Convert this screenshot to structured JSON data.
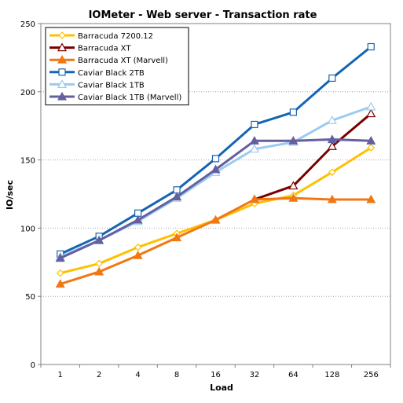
{
  "chart_data": {
    "type": "line",
    "title": "IOMeter - Web server - Transaction rate",
    "xlabel": "Load",
    "ylabel": "IO/sec",
    "categories": [
      "1",
      "2",
      "4",
      "8",
      "16",
      "32",
      "64",
      "128",
      "256"
    ],
    "ylim": [
      0,
      250
    ],
    "yticks": [
      0,
      50,
      100,
      150,
      200,
      250
    ],
    "grid": true,
    "legend_position": "top-left",
    "series": [
      {
        "name": "Barracuda 7200.12",
        "color": "#ffc000",
        "marker": "diamond-open",
        "values": [
          67,
          74,
          86,
          96,
          106,
          118,
          124,
          141,
          159
        ]
      },
      {
        "name": "Barracuda XT",
        "color": "#7a0000",
        "marker": "triangle-open",
        "values": [
          null,
          null,
          null,
          null,
          null,
          121,
          131,
          160,
          184
        ]
      },
      {
        "name": "Barracuda XT (Marvell)",
        "color": "#f07814",
        "marker": "triangle-filled",
        "values": [
          59,
          68,
          80,
          93,
          106,
          121,
          122,
          121,
          121
        ]
      },
      {
        "name": "Caviar Black 2TB",
        "color": "#1464b4",
        "marker": "square-open",
        "values": [
          81,
          94,
          111,
          128,
          151,
          176,
          185,
          210,
          233
        ]
      },
      {
        "name": "Caviar Black 1TB",
        "color": "#9ccbf0",
        "marker": "triangle-open",
        "values": [
          79,
          91,
          105,
          122,
          141,
          158,
          163,
          179,
          189
        ]
      },
      {
        "name": "Caviar Black 1TB (Marvell)",
        "color": "#6460a0",
        "marker": "triangle-filled",
        "values": [
          78,
          91,
          106,
          123,
          143,
          164,
          164,
          165,
          164
        ]
      }
    ]
  }
}
